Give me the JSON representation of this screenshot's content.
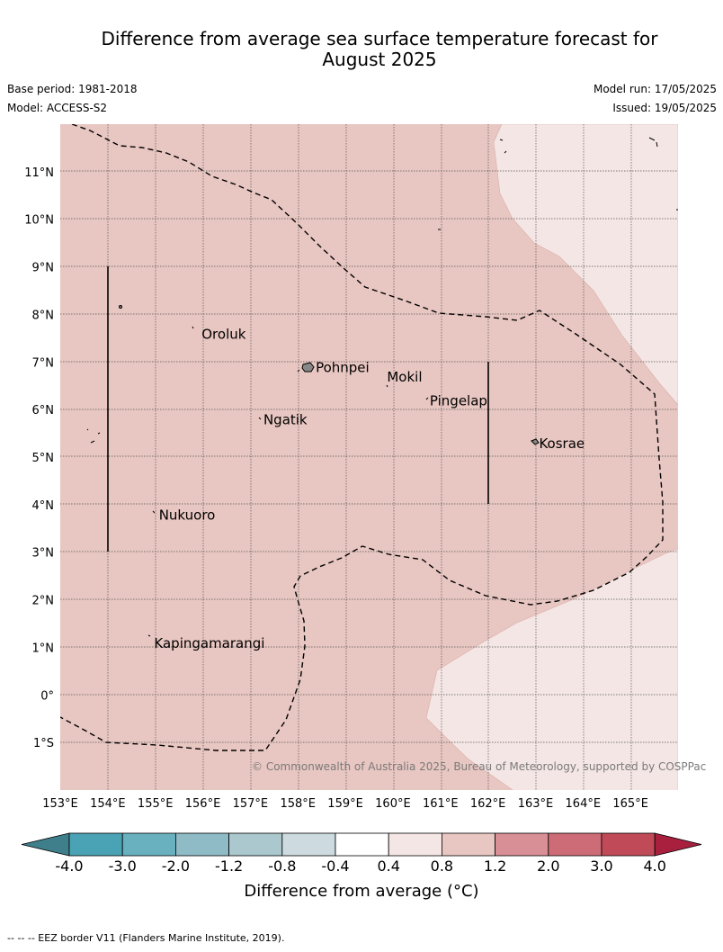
{
  "title_line1": "Difference from average sea surface temperature forecast for",
  "title_line2": "August 2025",
  "base_period": "Base period: 1981-2018",
  "model": "Model: ACCESS-S2",
  "model_run": "Model run: 17/05/2025",
  "issued": "Issued: 19/05/2025",
  "copyright": "© Commonwealth of Australia 2025, Bureau of Meteorology, supported by COSPPac",
  "footer": "--  --  -- EEZ border V11 (Flanders Marine Institute, 2019).",
  "colorbar": {
    "title": "Difference from average (°C)",
    "ticks": [
      "-4.0",
      "-3.0",
      "-2.0",
      "-1.2",
      "-0.8",
      "-0.4",
      "0.4",
      "0.8",
      "1.2",
      "2.0",
      "3.0",
      "4.0"
    ],
    "colors": [
      "#3f7f8c",
      "#4aa3b4",
      "#6ab1c0",
      "#8fbbc6",
      "#aac8cd",
      "#cddbe0",
      "#ffffff",
      "#f4e6e4",
      "#e8c6c1",
      "#d88f95",
      "#cd6b76",
      "#c04a58",
      "#a8203e"
    ]
  },
  "map": {
    "lon_range": [
      153,
      166
    ],
    "lat_range": [
      -2,
      12
    ],
    "lon_ticks": [
      "153°E",
      "154°E",
      "155°E",
      "156°E",
      "157°E",
      "158°E",
      "159°E",
      "160°E",
      "161°E",
      "162°E",
      "163°E",
      "164°E",
      "165°E"
    ],
    "lat_ticks": [
      "11°N",
      "10°N",
      "9°N",
      "8°N",
      "7°N",
      "6°N",
      "5°N",
      "4°N",
      "3°N",
      "2°N",
      "1°N",
      "0°",
      "1°S"
    ],
    "main_fill": "#e8c6c1",
    "light_fill": "#f4e6e4",
    "places": [
      {
        "name": "Oroluk",
        "lon": 155.9,
        "lat": 7.6
      },
      {
        "name": "Pohnpei",
        "lon": 158.3,
        "lat": 6.9
      },
      {
        "name": "Mokil",
        "lon": 159.8,
        "lat": 6.7
      },
      {
        "name": "Pingelap",
        "lon": 160.7,
        "lat": 6.2
      },
      {
        "name": "Ngatik",
        "lon": 157.2,
        "lat": 5.8
      },
      {
        "name": "Kosrae",
        "lon": 163.0,
        "lat": 5.3
      },
      {
        "name": "Nukuoro",
        "lon": 155.0,
        "lat": 3.8
      },
      {
        "name": "Kapingamarangi",
        "lon": 154.9,
        "lat": 1.1
      }
    ]
  }
}
